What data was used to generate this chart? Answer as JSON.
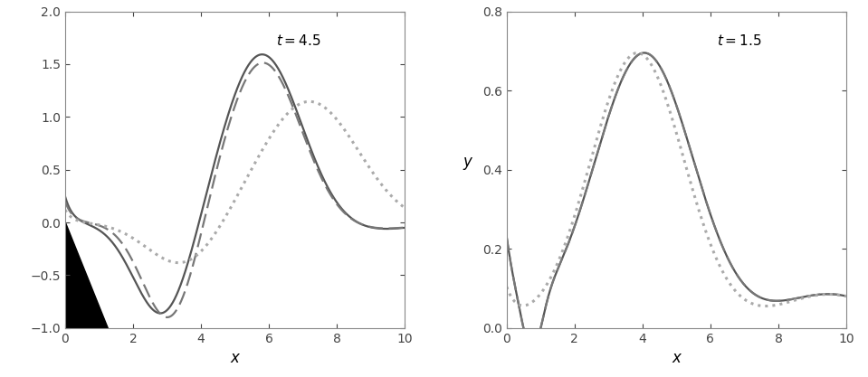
{
  "left_xlim": [
    0,
    10
  ],
  "left_ylim": [
    -1.0,
    2.0
  ],
  "right_xlim": [
    0,
    10
  ],
  "right_ylim": [
    0,
    0.8
  ],
  "left_xticks": [
    0,
    2,
    4,
    6,
    8,
    10
  ],
  "left_yticks": [
    -1.0,
    -0.5,
    0.0,
    0.5,
    1.0,
    1.5,
    2.0
  ],
  "right_xticks": [
    0,
    2,
    4,
    6,
    8,
    10
  ],
  "right_yticks": [
    0.0,
    0.2,
    0.4,
    0.6,
    0.8
  ],
  "left_t_label": "t = 4.5",
  "right_t_label": "t = 1.5",
  "left_xlabel": "x",
  "right_xlabel": "x",
  "right_ylabel": "y",
  "line_color_solid": "#555555",
  "line_color_dashed": "#777777",
  "line_color_dotted": "#aaaaaa",
  "line_width": 1.6,
  "triangle_color": "#000000"
}
